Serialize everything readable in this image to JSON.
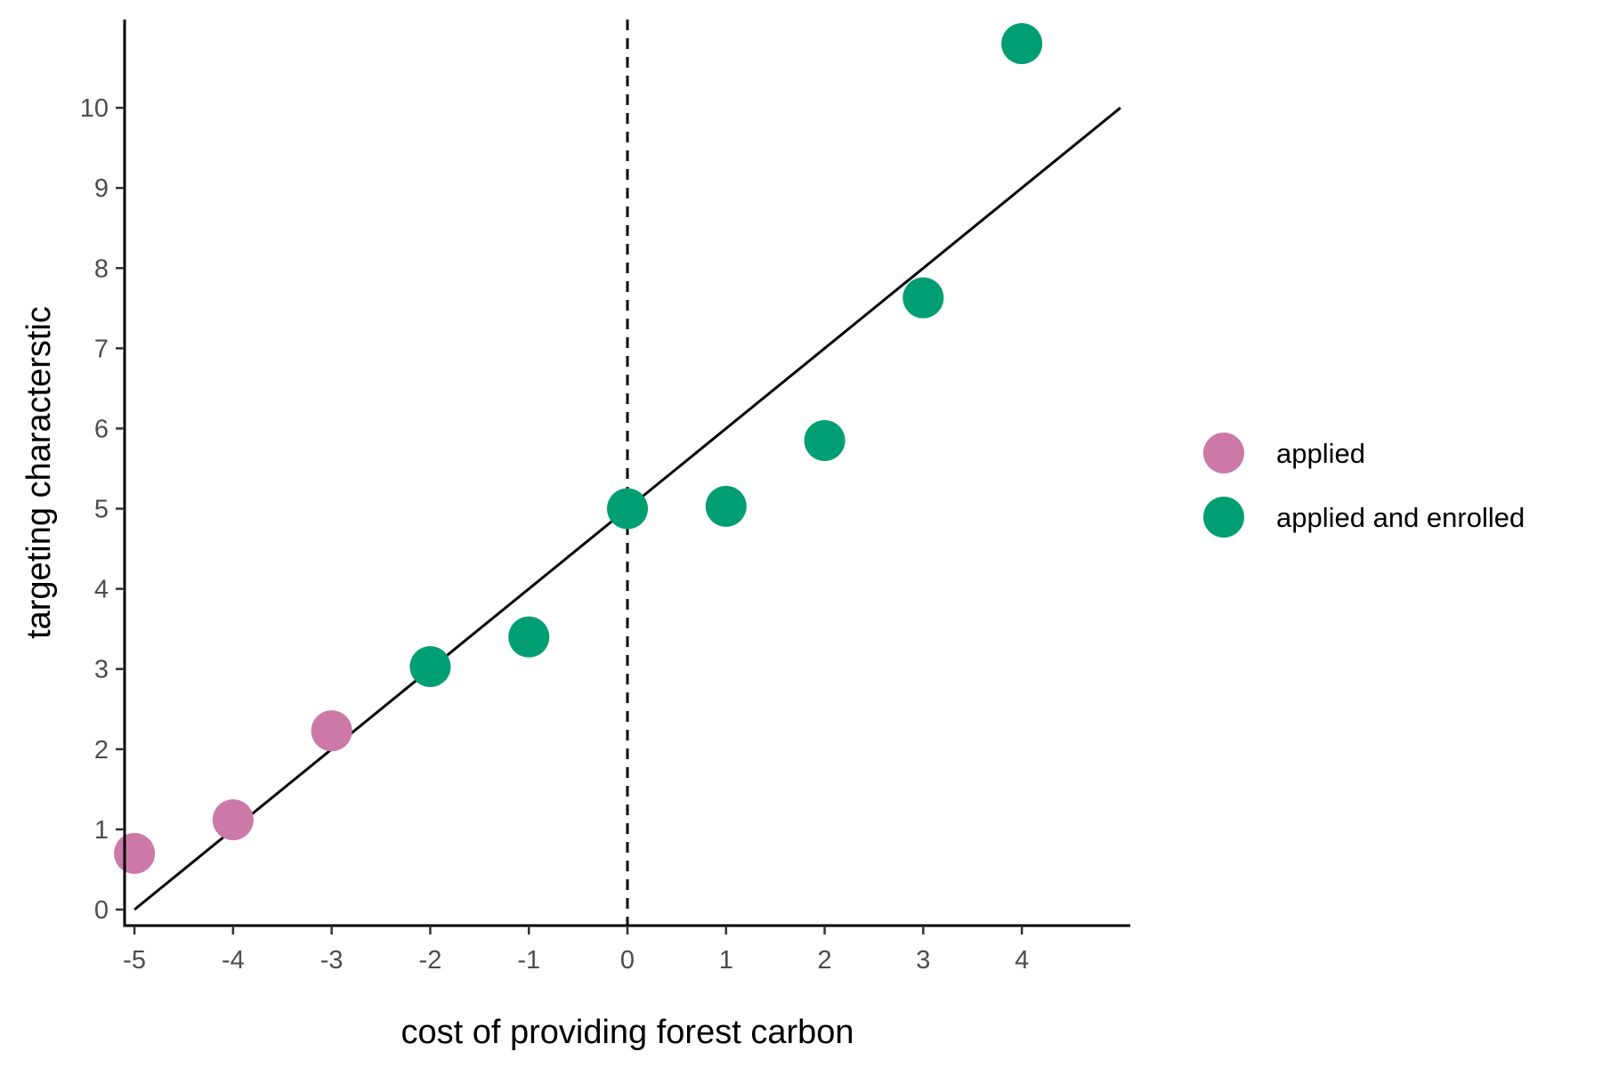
{
  "chart_data": {
    "type": "scatter",
    "title": "",
    "xlabel": "cost of providing forest carbon",
    "ylabel": "targeting characterstic",
    "xlim": [
      -5.1,
      5.1
    ],
    "ylim": [
      -0.2,
      11.1
    ],
    "x_ticks": [
      "-5",
      "-4",
      "-3",
      "-2",
      "-1",
      "0",
      "1",
      "2",
      "3",
      "4"
    ],
    "y_ticks": [
      "0",
      "1",
      "2",
      "3",
      "4",
      "5",
      "6",
      "7",
      "8",
      "9",
      "10"
    ],
    "grid": false,
    "legend_position": "right",
    "series": [
      {
        "name": "applied",
        "color": "#CC79A7",
        "points": [
          {
            "x": -5,
            "y": 0.7
          },
          {
            "x": -4,
            "y": 1.12
          },
          {
            "x": -3,
            "y": 2.23
          }
        ]
      },
      {
        "name": "applied and enrolled",
        "color": "#009E73",
        "points": [
          {
            "x": -2,
            "y": 3.03
          },
          {
            "x": -1,
            "y": 3.4
          },
          {
            "x": 0,
            "y": 5.0
          },
          {
            "x": 1,
            "y": 5.03
          },
          {
            "x": 2,
            "y": 5.85
          },
          {
            "x": 3,
            "y": 7.63
          },
          {
            "x": 4,
            "y": 10.8
          }
        ]
      }
    ],
    "reference_line": {
      "x1": -5,
      "y1": 0,
      "x2": 5,
      "y2": 10,
      "color": "#000000"
    },
    "vline": {
      "x": 0,
      "style": "dashed",
      "color": "#000000"
    }
  }
}
